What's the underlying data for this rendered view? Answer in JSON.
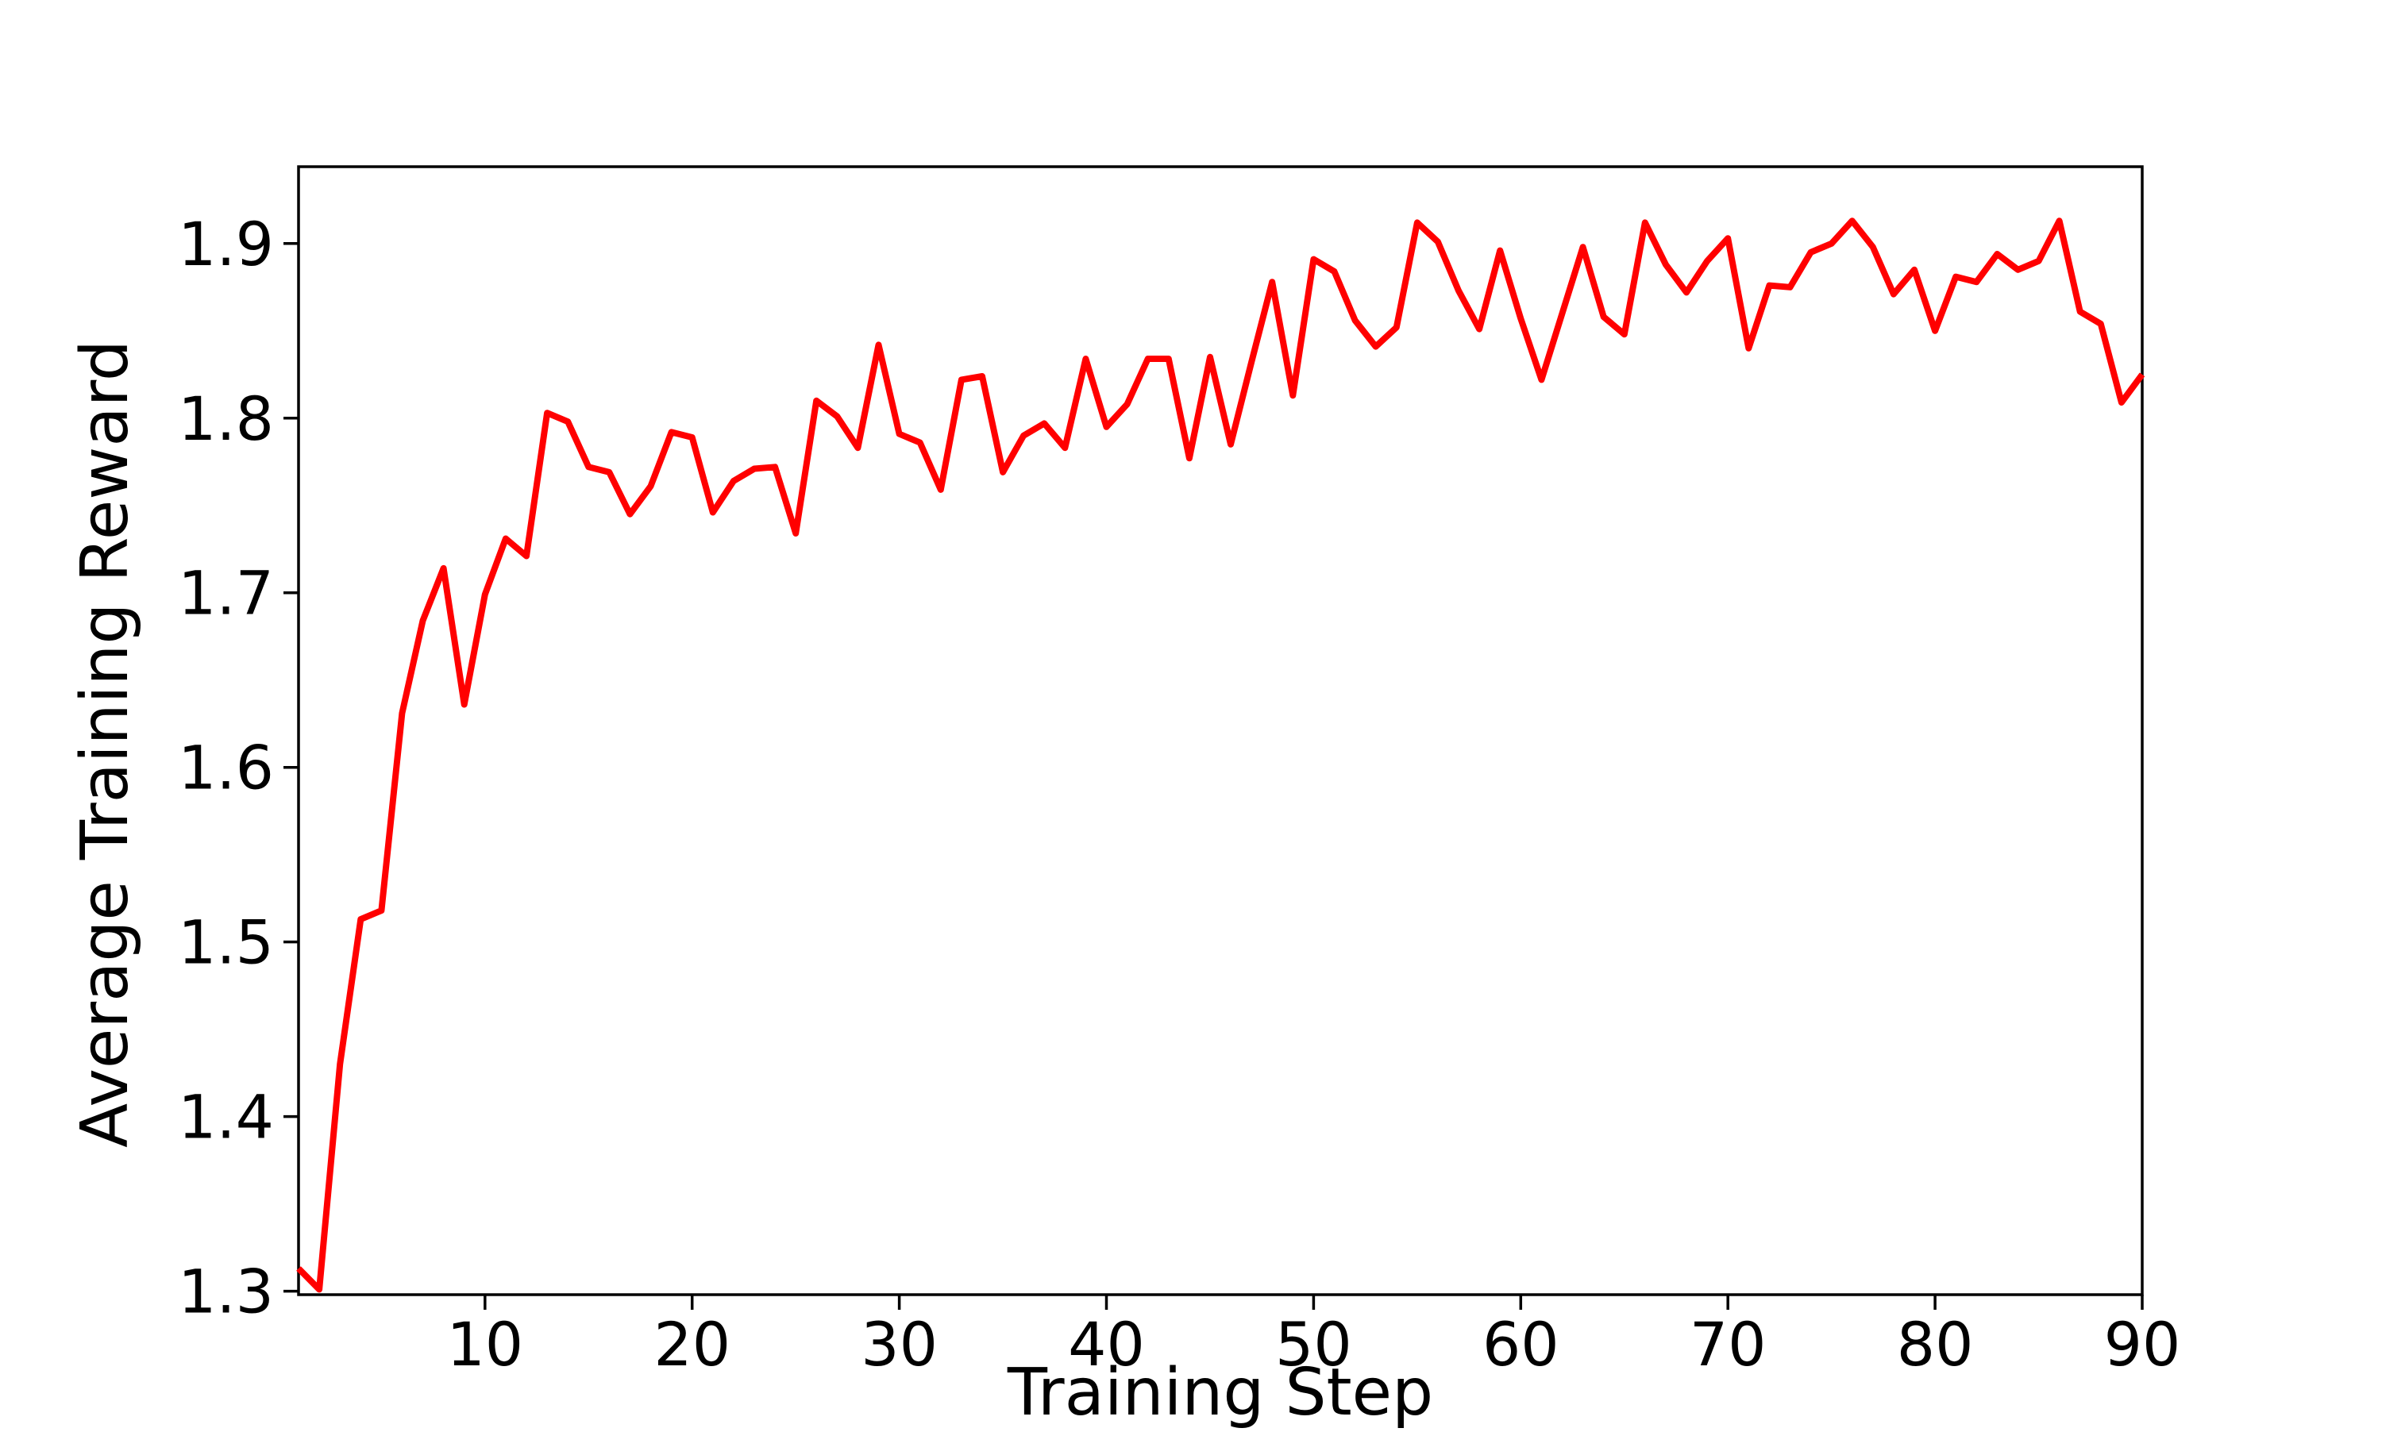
{
  "chart_data": {
    "type": "line",
    "title": "",
    "xlabel": "Training Step",
    "ylabel": "Average Training Reward",
    "series": [
      {
        "name": "average-training-reward",
        "x_start": 1,
        "x_step": 1,
        "values": [
          1.313,
          1.301,
          1.43,
          1.513,
          1.518,
          1.631,
          1.684,
          1.714,
          1.636,
          1.699,
          1.731,
          1.721,
          1.803,
          1.798,
          1.772,
          1.769,
          1.745,
          1.761,
          1.792,
          1.789,
          1.746,
          1.764,
          1.771,
          1.772,
          1.734,
          1.81,
          1.801,
          1.783,
          1.842,
          1.791,
          1.786,
          1.759,
          1.822,
          1.824,
          1.769,
          1.79,
          1.797,
          1.783,
          1.834,
          1.795,
          1.808,
          1.834,
          1.834,
          1.777,
          1.835,
          1.785,
          1.832,
          1.878,
          1.813,
          1.891,
          1.884,
          1.856,
          1.841,
          1.852,
          1.912,
          1.901,
          1.873,
          1.851,
          1.896,
          1.857,
          1.822,
          1.86,
          1.898,
          1.858,
          1.848,
          1.912,
          1.888,
          1.872,
          1.89,
          1.903,
          1.84,
          1.876,
          1.875,
          1.895,
          1.9,
          1.913,
          1.898,
          1.871,
          1.885,
          1.85,
          1.881,
          1.878,
          1.894,
          1.885,
          1.89,
          1.913,
          1.861,
          1.854,
          1.809,
          1.825
        ]
      }
    ],
    "xlim": [
      1,
      90
    ],
    "ylim": [
      1.298,
      1.944
    ],
    "xticks": [
      10,
      20,
      30,
      40,
      50,
      60,
      70,
      80,
      90
    ],
    "xtick_labels": [
      "10",
      "20",
      "30",
      "40",
      "50",
      "60",
      "70",
      "80",
      "90"
    ],
    "yticks": [
      1.3,
      1.4,
      1.5,
      1.6,
      1.7,
      1.8,
      1.9
    ],
    "ytick_labels": [
      "1.3",
      "1.4",
      "1.5",
      "1.6",
      "1.7",
      "1.8",
      "1.9"
    ],
    "grid": false,
    "legend": null,
    "line_color": "#ff0000",
    "axis_color": "#000000",
    "background_color": "#ffffff"
  }
}
